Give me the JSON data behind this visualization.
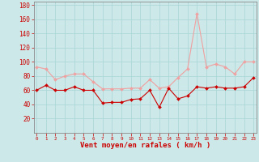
{
  "x": [
    0,
    1,
    2,
    3,
    4,
    5,
    6,
    7,
    8,
    9,
    10,
    11,
    12,
    13,
    14,
    15,
    16,
    17,
    18,
    19,
    20,
    21,
    22,
    23
  ],
  "wind_avg": [
    60,
    67,
    60,
    60,
    65,
    60,
    60,
    42,
    43,
    43,
    47,
    48,
    60,
    36,
    63,
    48,
    52,
    65,
    63,
    65,
    63,
    63,
    65,
    78
  ],
  "wind_gust": [
    93,
    90,
    75,
    80,
    83,
    83,
    72,
    62,
    62,
    62,
    63,
    63,
    75,
    63,
    65,
    78,
    90,
    168,
    93,
    97,
    93,
    83,
    100,
    100
  ],
  "bg_color": "#cce8e8",
  "grid_color": "#add8d8",
  "line_avg_color": "#cc0000",
  "line_gust_color": "#f0a0a0",
  "xlabel": "Vent moyen/en rafales ( km/h )",
  "xlabel_color": "#cc0000",
  "tick_color": "#cc0000",
  "spine_color": "#888888",
  "ylim": [
    0,
    185
  ],
  "yticks": [
    20,
    40,
    60,
    80,
    100,
    120,
    140,
    160,
    180
  ],
  "xlim": [
    -0.3,
    23.3
  ]
}
